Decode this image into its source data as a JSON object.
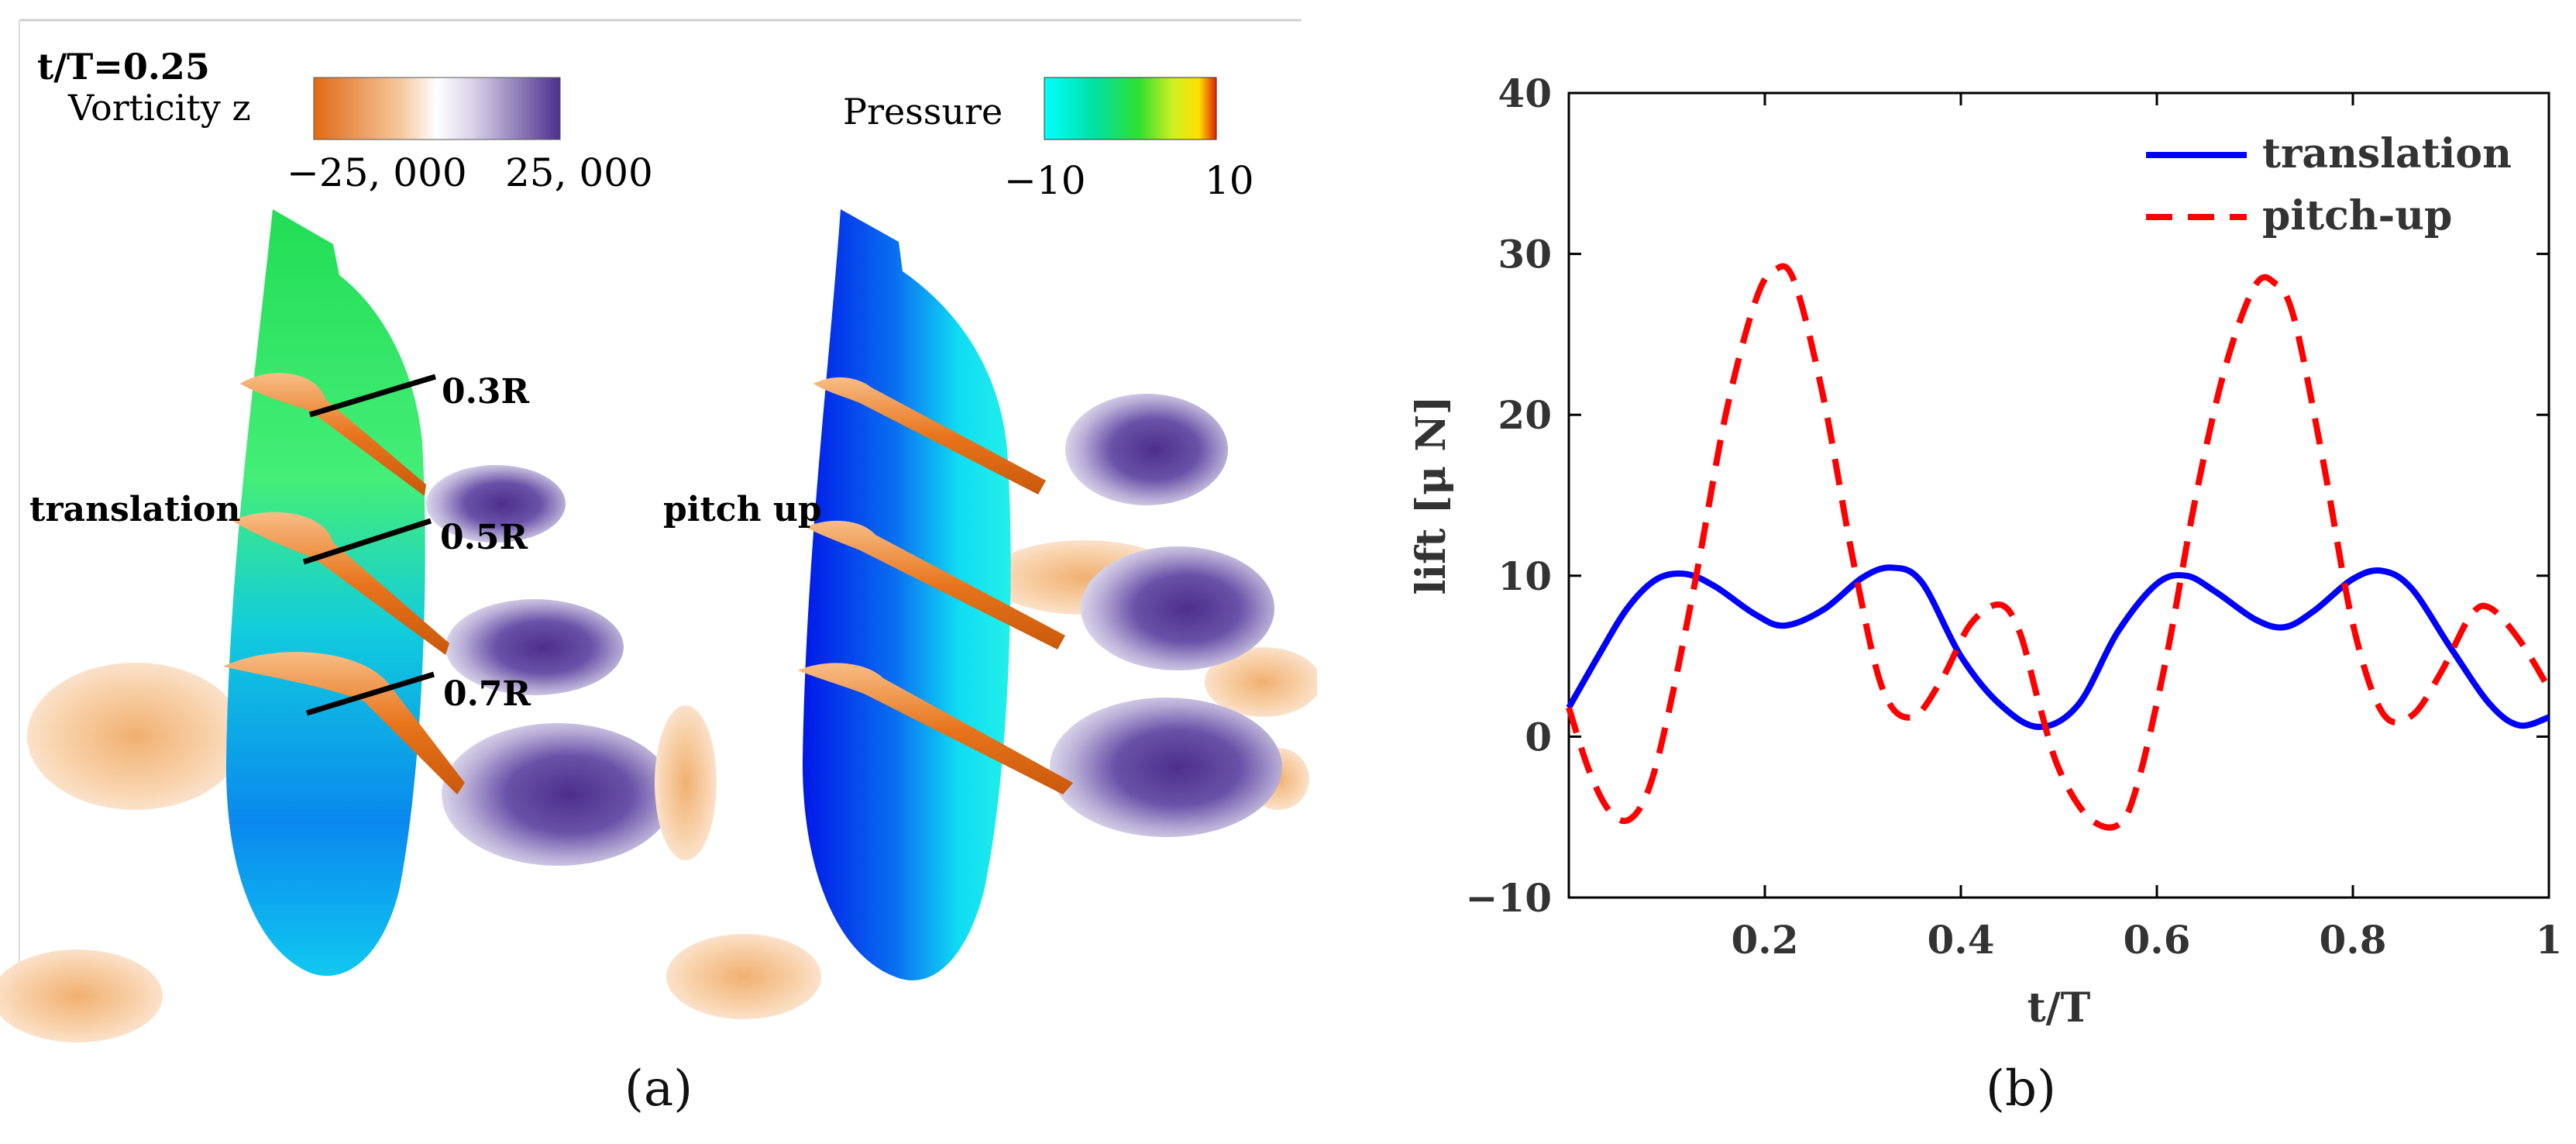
{
  "panel_a": {
    "time_label": "t/T=0.25",
    "vorticity_colorbar": {
      "label": "Vorticity z",
      "min_label": "−25, 000",
      "max_label": "25, 000",
      "colors": [
        "#e06a12",
        "#f4b078",
        "#fbe3cc",
        "#ffffff",
        "#e2dcee",
        "#9b86c0",
        "#4c2f8c"
      ]
    },
    "pressure_colorbar": {
      "label": "Pressure",
      "min_label": "−10",
      "max_label": "10",
      "colors": [
        "#00ffff",
        "#00e090",
        "#30e030",
        "#c0f020",
        "#ffff00",
        "#ff8000",
        "#e02000"
      ]
    },
    "left_view_label": "translation",
    "right_view_label": "pitch up",
    "section_labels": [
      "0.3R",
      "0.5R",
      "0.7R"
    ],
    "caption": "(a)"
  },
  "panel_b": {
    "caption": "(b)"
  },
  "chart_data": {
    "type": "line",
    "xlabel": "t/T",
    "ylabel": "lift [μ N]",
    "xlim": [
      0,
      1
    ],
    "ylim": [
      -10,
      40
    ],
    "xticks": [
      0.2,
      0.4,
      0.6,
      0.8,
      1
    ],
    "xtick_labels": [
      "0.2",
      "0.4",
      "0.6",
      "0.8",
      "1"
    ],
    "yticks": [
      -10,
      0,
      10,
      20,
      30,
      40
    ],
    "ytick_labels": [
      "−10",
      "0",
      "10",
      "20",
      "30",
      "40"
    ],
    "grid": false,
    "legend_position": "top-right",
    "series": [
      {
        "name": "translation",
        "color": "#0000ff",
        "dash": "solid",
        "x": [
          0,
          0.03,
          0.06,
          0.09,
          0.12,
          0.15,
          0.19,
          0.22,
          0.26,
          0.3,
          0.33,
          0.36,
          0.4,
          0.44,
          0.48,
          0.52,
          0.56,
          0.6,
          0.63,
          0.66,
          0.7,
          0.73,
          0.76,
          0.8,
          0.83,
          0.86,
          0.9,
          0.94,
          0.97,
          1.0
        ],
        "y": [
          1.8,
          5.0,
          8.0,
          9.8,
          10.1,
          9.3,
          7.6,
          6.9,
          7.9,
          9.9,
          10.5,
          9.6,
          5.0,
          2.0,
          0.6,
          2.0,
          6.5,
          9.5,
          10.0,
          9.0,
          7.3,
          6.8,
          7.8,
          9.8,
          10.3,
          9.2,
          5.5,
          2.0,
          0.7,
          1.2
        ]
      },
      {
        "name": "pitch-up",
        "color": "#ff0000",
        "dash": "dashed",
        "x": [
          0,
          0.02,
          0.04,
          0.06,
          0.08,
          0.1,
          0.13,
          0.16,
          0.19,
          0.21,
          0.23,
          0.26,
          0.29,
          0.32,
          0.35,
          0.38,
          0.41,
          0.44,
          0.46,
          0.48,
          0.5,
          0.53,
          0.56,
          0.58,
          0.61,
          0.64,
          0.67,
          0.7,
          0.72,
          0.74,
          0.77,
          0.8,
          0.83,
          0.86,
          0.89,
          0.92,
          0.94,
          0.97,
          1.0
        ],
        "y": [
          1.8,
          -2.0,
          -4.5,
          -5.2,
          -3.5,
          1.0,
          10.0,
          20.0,
          27.0,
          29.0,
          28.3,
          21.0,
          11.0,
          3.0,
          1.2,
          3.5,
          7.0,
          8.2,
          6.5,
          2.0,
          -2.0,
          -5.0,
          -5.5,
          -3.0,
          5.0,
          15.0,
          23.0,
          28.0,
          28.2,
          26.0,
          17.0,
          7.0,
          1.5,
          1.3,
          4.0,
          7.5,
          8.0,
          6.0,
          3.0
        ]
      }
    ]
  }
}
